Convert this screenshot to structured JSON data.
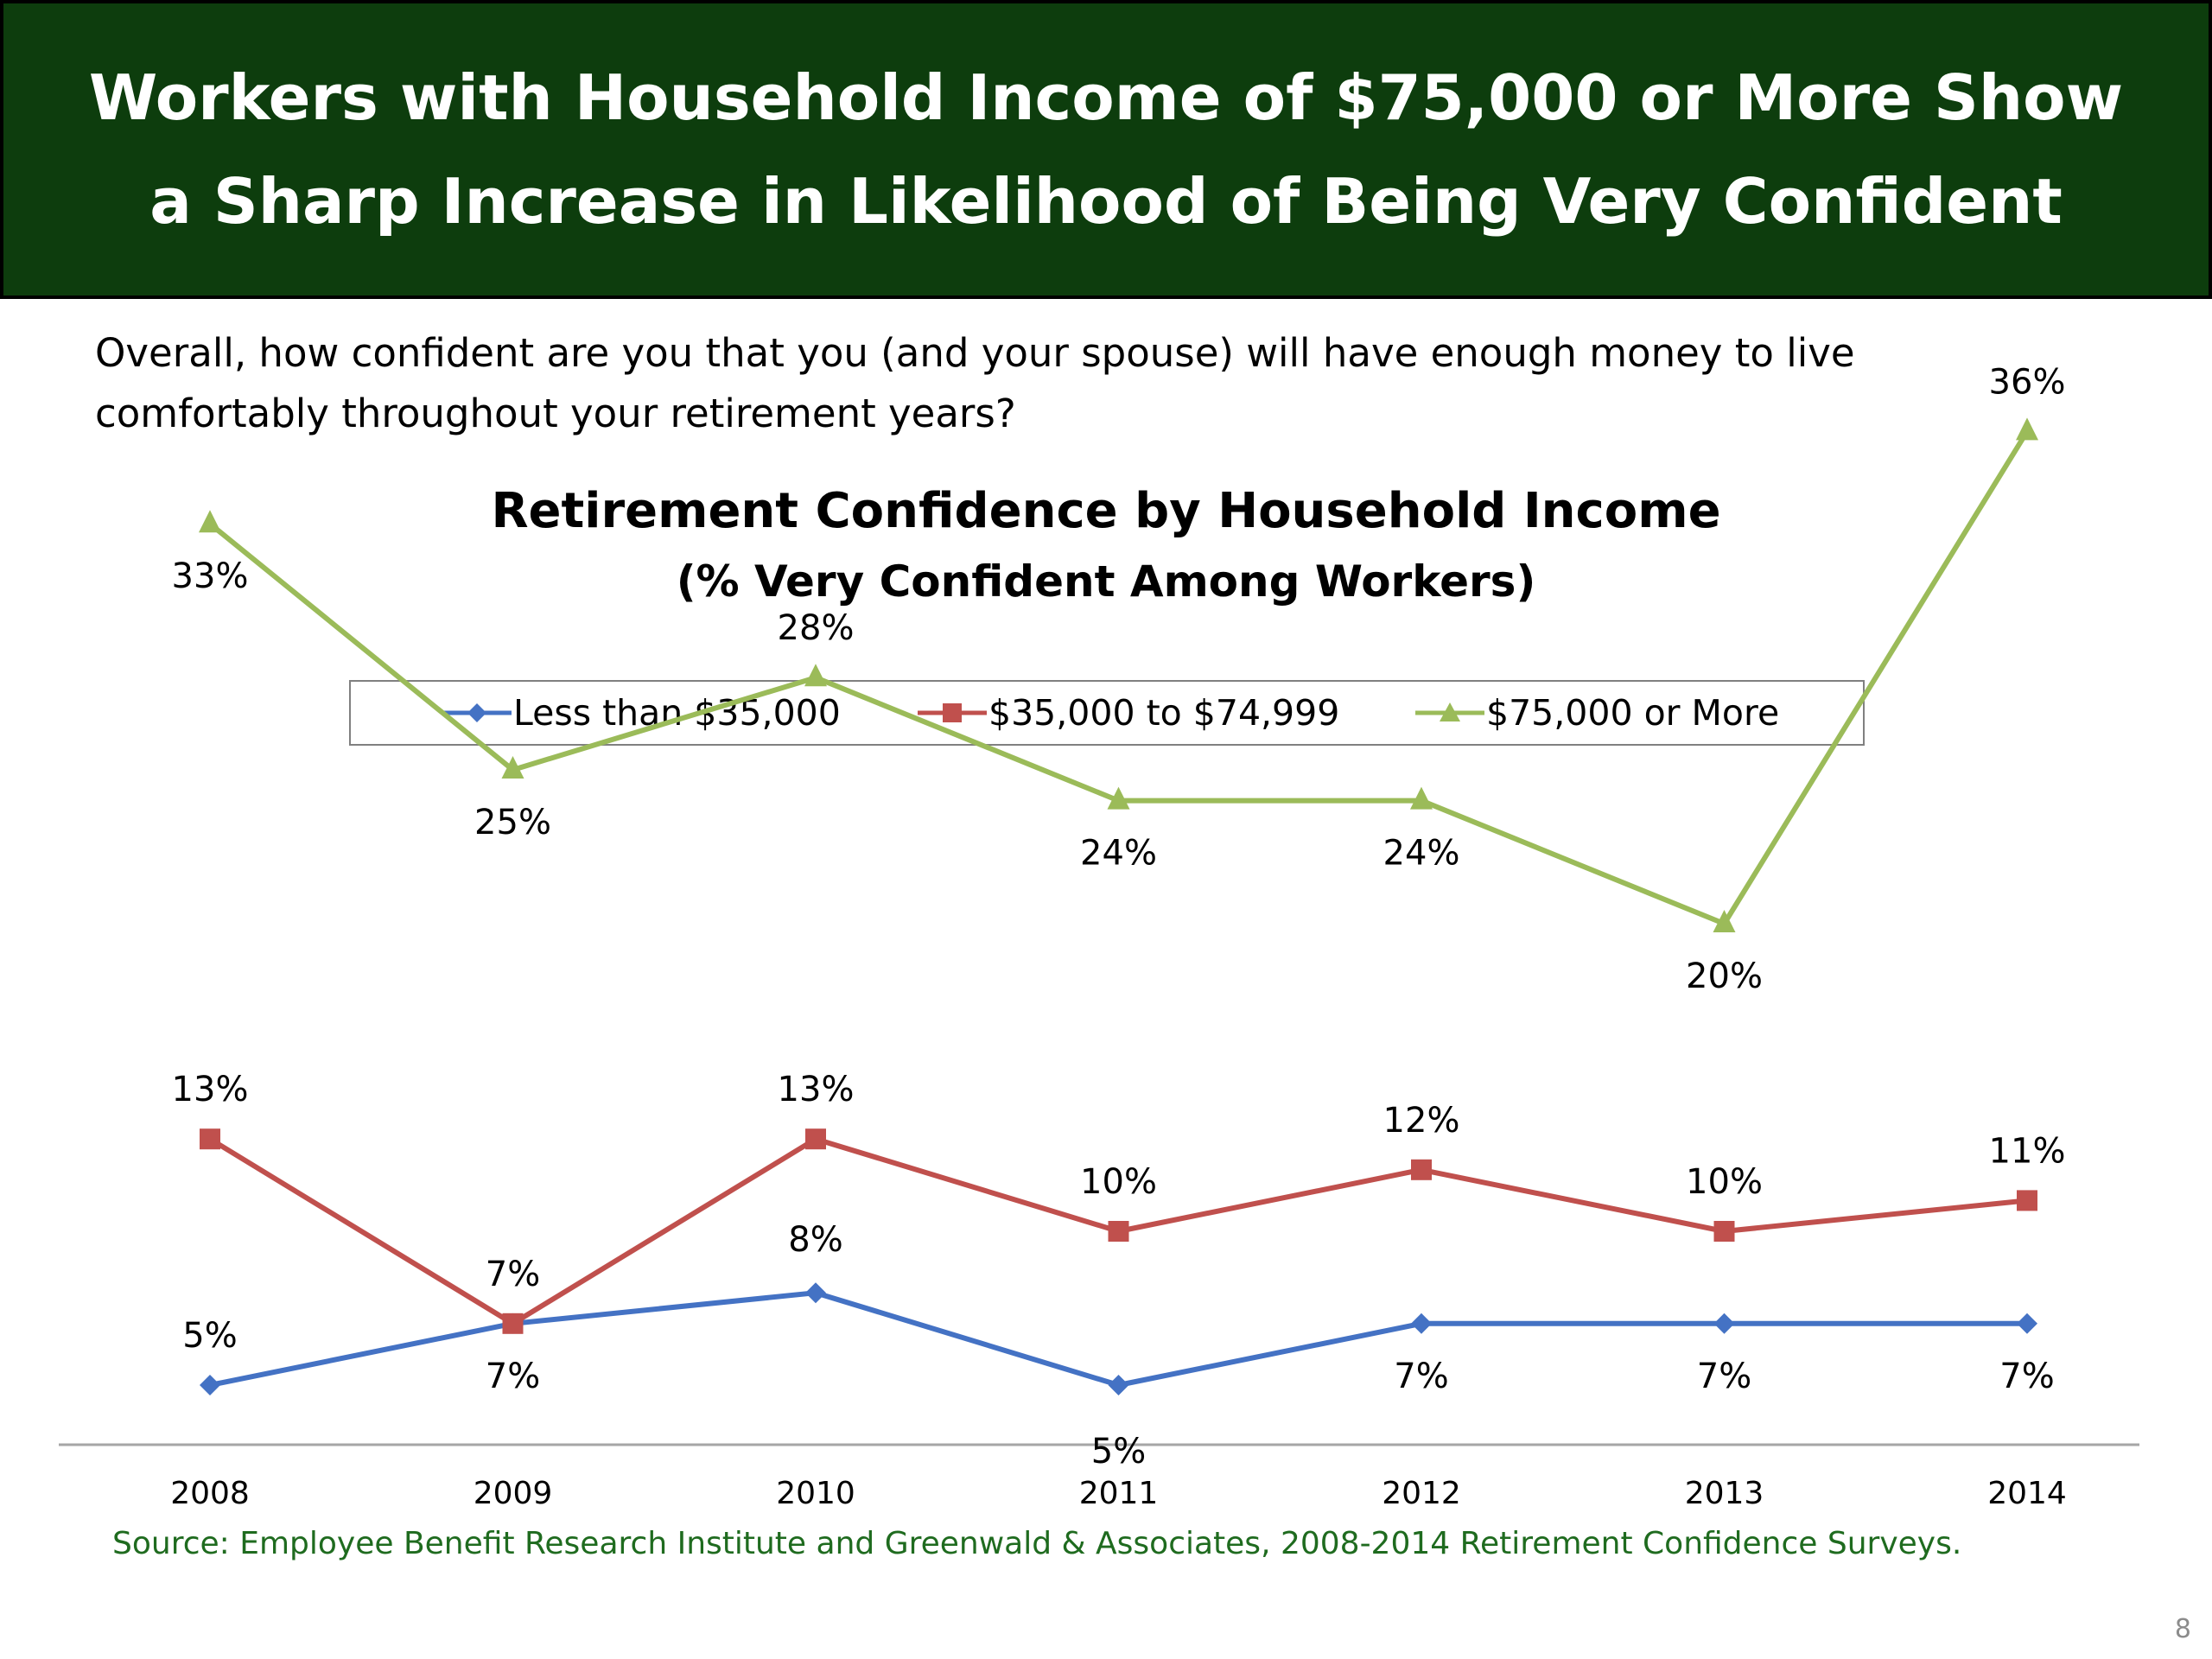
{
  "slide": {
    "title_line1": "Workers with Household Income of $75,000 or More Show",
    "title_line2": "a Sharp Increase in Likelihood of Being Very Confident",
    "question_line1": "Overall, how confident are you that you (and your spouse) will have enough money to live",
    "question_line2": "comfortably throughout your retirement years?",
    "source": "Source:  Employee Benefit Research Institute and Greenwald & Associates, 2008-2014 Retirement Confidence Surveys.",
    "page_number": "8"
  },
  "colors": {
    "banner_background": "#0d3d0d",
    "banner_text": "#ffffff",
    "source_text": "#1f6b1f",
    "axis_line": "#a6a6a6"
  },
  "chart_data": {
    "type": "line",
    "title": "Retirement Confidence by Household Income",
    "subtitle": "(% Very Confident Among Workers)",
    "xlabel": "",
    "ylabel": "",
    "x": [
      "2008",
      "2009",
      "2010",
      "2011",
      "2012",
      "2013",
      "2014"
    ],
    "ylim": [
      0,
      40
    ],
    "grid": false,
    "legend_position": "top",
    "series": [
      {
        "name": "Less than $35,000",
        "color": "#4472c4",
        "marker": "diamond",
        "values": [
          5,
          7,
          8,
          5,
          7,
          7,
          7
        ],
        "labels": [
          "5%",
          "7%",
          "8%",
          "5%",
          "7%",
          "7%",
          "7%"
        ]
      },
      {
        "name": "$35,000 to $74,999",
        "color": "#c0504d",
        "marker": "square",
        "values": [
          13,
          7,
          13,
          10,
          12,
          10,
          11
        ],
        "labels": [
          "13%",
          "7%",
          "13%",
          "10%",
          "12%",
          "10%",
          "11%"
        ]
      },
      {
        "name": "$75,000 or More",
        "color": "#9bbb59",
        "marker": "triangle",
        "values": [
          33,
          25,
          28,
          24,
          24,
          20,
          36
        ],
        "labels": [
          "33%",
          "25%",
          "28%",
          "24%",
          "24%",
          "20%",
          "36%"
        ]
      }
    ]
  }
}
